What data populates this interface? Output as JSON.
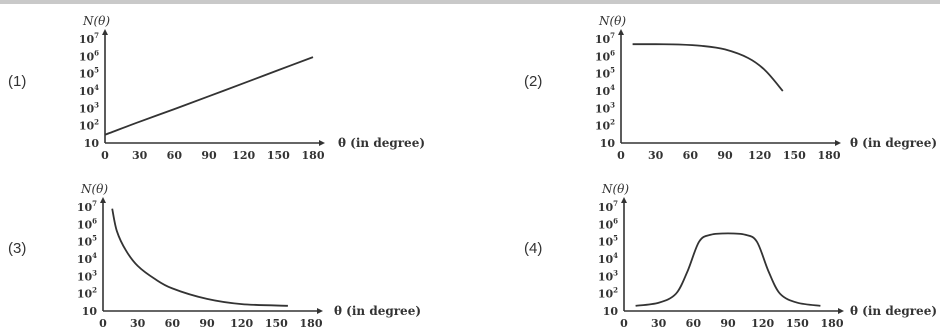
{
  "chart_data": [
    {
      "type": "line",
      "panel_label": "(1)",
      "ylabel": "N(θ)",
      "xlabel": "θ (in degree)",
      "x_ticks": [
        "0",
        "30",
        "60",
        "90",
        "120",
        "150",
        "180"
      ],
      "y_ticks": [
        "10",
        "10^2",
        "10^3",
        "10^4",
        "10^5",
        "10^6",
        "10^7"
      ],
      "y_scale": "log",
      "xlim": [
        0,
        180
      ],
      "ylim": [
        10,
        10000000
      ],
      "series": [
        {
          "x": [
            0,
            30,
            60,
            90,
            120,
            150,
            180
          ],
          "y": [
            30,
            170,
            900,
            5000,
            28000,
            160000,
            900000
          ]
        }
      ]
    },
    {
      "type": "line",
      "panel_label": "(2)",
      "ylabel": "N(θ)",
      "xlabel": "θ (in degree)",
      "x_ticks": [
        "0",
        "30",
        "60",
        "90",
        "120",
        "150",
        "180"
      ],
      "y_ticks": [
        "10",
        "10^2",
        "10^3",
        "10^4",
        "10^5",
        "10^6",
        "10^7"
      ],
      "y_scale": "log",
      "xlim": [
        0,
        180
      ],
      "ylim": [
        10,
        10000000
      ],
      "series": [
        {
          "x": [
            10,
            30,
            50,
            70,
            90,
            110,
            125,
            140
          ],
          "y": [
            5000000,
            5000000,
            4800000,
            4000000,
            2500000,
            800000,
            150000,
            10000
          ]
        }
      ]
    },
    {
      "type": "line",
      "panel_label": "(3)",
      "ylabel": "N(θ)",
      "xlabel": "θ (in degree)",
      "x_ticks": [
        "0",
        "30",
        "60",
        "90",
        "120",
        "150",
        "180"
      ],
      "y_ticks": [
        "10",
        "10^2",
        "10^3",
        "10^4",
        "10^5",
        "10^6",
        "10^7"
      ],
      "y_scale": "log",
      "xlim": [
        0,
        180
      ],
      "ylim": [
        10,
        10000000
      ],
      "series": [
        {
          "x": [
            8,
            12,
            20,
            30,
            45,
            60,
            90,
            120,
            160
          ],
          "y": [
            8000000,
            400000,
            30000,
            4000,
            700,
            200,
            50,
            25,
            20
          ]
        }
      ]
    },
    {
      "type": "line",
      "panel_label": "(4)",
      "ylabel": "N(θ)",
      "xlabel": "θ (in degree)",
      "x_ticks": [
        "0",
        "30",
        "60",
        "90",
        "120",
        "150",
        "180"
      ],
      "y_ticks": [
        "10",
        "10^2",
        "10^3",
        "10^4",
        "10^5",
        "10^6",
        "10^7"
      ],
      "y_scale": "log",
      "xlim": [
        0,
        180
      ],
      "ylim": [
        10,
        10000000
      ],
      "series": [
        {
          "x": [
            10,
            30,
            45,
            55,
            65,
            75,
            90,
            105,
            115,
            125,
            135,
            150,
            170
          ],
          "y": [
            20,
            30,
            100,
            2000,
            100000,
            250000,
            300000,
            250000,
            100000,
            2000,
            100,
            30,
            20
          ]
        }
      ]
    }
  ]
}
